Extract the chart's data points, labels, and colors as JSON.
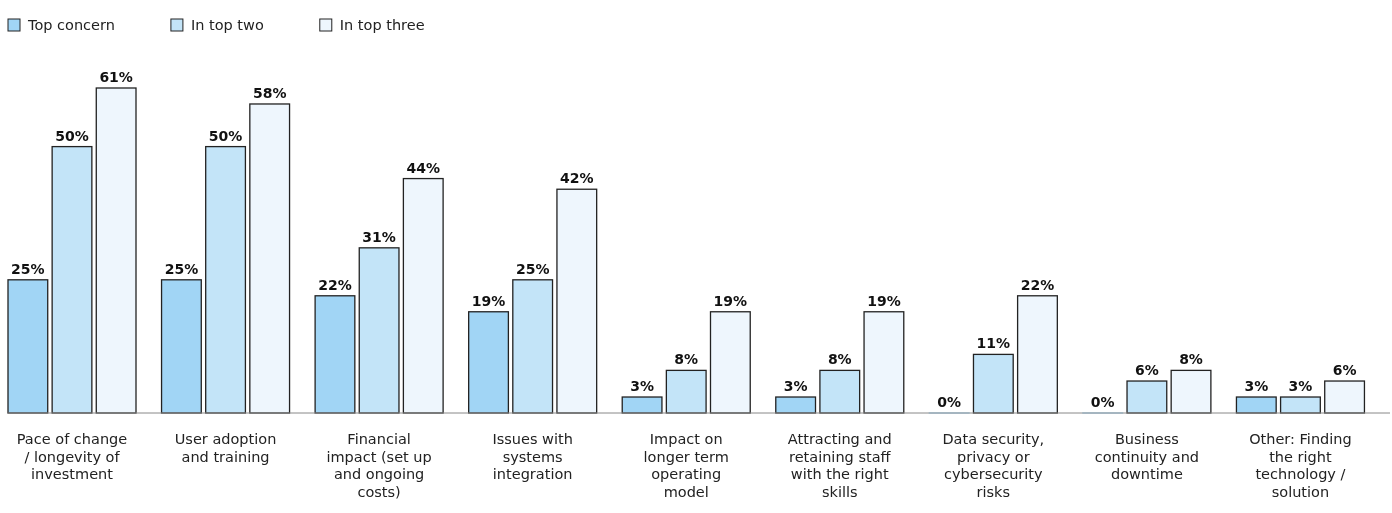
{
  "chart_data": {
    "type": "bar",
    "categories": [
      "Pace of change / longevity of investment",
      "User adoption and training",
      "Financial impact (set up and ongoing costs)",
      "Issues with systems integration",
      "Impact on longer term operating model",
      "Attracting and retaining staff with the right skills",
      "Data security, privacy or cybersecurity risks",
      "Business continuity and downtime",
      "Other: Finding the right technology / solution"
    ],
    "series": [
      {
        "name": "Top concern",
        "color": "#a1d5f5",
        "values": [
          25,
          25,
          22,
          19,
          3,
          3,
          0,
          0,
          3
        ],
        "value_labels": [
          "25%",
          "25%",
          "22%",
          "19%",
          "3%",
          "3%",
          "0%",
          "0%",
          "3%"
        ]
      },
      {
        "name": "In top two",
        "color": "#c3e4f8",
        "values": [
          50,
          50,
          31,
          25,
          8,
          8,
          11,
          6,
          3
        ],
        "value_labels": [
          "50%",
          "50%",
          "31%",
          "25%",
          "8%",
          "8%",
          "11%",
          "6%",
          "3%"
        ]
      },
      {
        "name": "In top three",
        "color": "#eef6fd",
        "values": [
          61,
          58,
          44,
          42,
          19,
          19,
          22,
          8,
          6
        ],
        "value_labels": [
          "61%",
          "58%",
          "44%",
          "42%",
          "19%",
          "19%",
          "22%",
          "8%",
          "6%"
        ]
      }
    ],
    "legend": "top left"
  }
}
